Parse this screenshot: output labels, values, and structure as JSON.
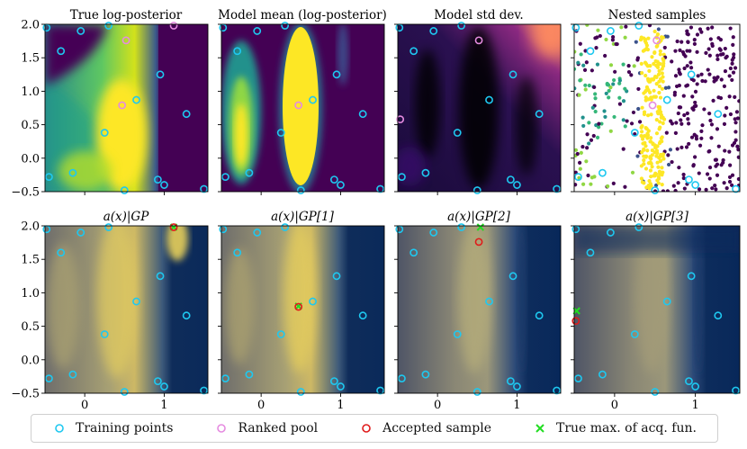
{
  "chart_data": [
    {
      "type": "heatmap",
      "title": "True log-posterior",
      "colormap": "viridis",
      "xlim": [
        -0.5,
        1.55
      ],
      "ylim": [
        -0.5,
        2.0
      ]
    },
    {
      "type": "heatmap",
      "title": "Model mean (log-posterior)",
      "colormap": "viridis",
      "xlim": [
        -0.5,
        1.55
      ],
      "ylim": [
        -0.5,
        2.0
      ]
    },
    {
      "type": "heatmap",
      "title": "Model std dev.",
      "colormap": "magma",
      "xlim": [
        -0.5,
        1.55
      ],
      "ylim": [
        -0.5,
        2.0
      ]
    },
    {
      "type": "scatter",
      "title": "Nested samples",
      "colormap": "viridis",
      "xlim": [
        -0.5,
        1.55
      ],
      "ylim": [
        -0.5,
        2.0
      ]
    },
    {
      "type": "heatmap",
      "title": "a(x)|GP",
      "colormap": "cividis",
      "xlim": [
        -0.5,
        1.55
      ],
      "ylim": [
        -0.5,
        2.0
      ]
    },
    {
      "type": "heatmap",
      "title": "a(x)|GP[1]",
      "colormap": "cividis",
      "xlim": [
        -0.5,
        1.55
      ],
      "ylim": [
        -0.5,
        2.0
      ]
    },
    {
      "type": "heatmap",
      "title": "a(x)|GP[2]",
      "colormap": "cividis",
      "xlim": [
        -0.5,
        1.55
      ],
      "ylim": [
        -0.5,
        2.0
      ]
    },
    {
      "type": "heatmap",
      "title": "a(x)|GP[3]",
      "colormap": "cividis",
      "xlim": [
        -0.5,
        1.55
      ],
      "ylim": [
        -0.5,
        2.0
      ]
    }
  ],
  "axes": {
    "xticks": [
      {
        "v": 0,
        "label": "0"
      },
      {
        "v": 1,
        "label": "1"
      }
    ],
    "yticks": [
      {
        "v": -0.5,
        "label": "−0.5"
      },
      {
        "v": 0.0,
        "label": "0.0"
      },
      {
        "v": 0.5,
        "label": "0.5"
      },
      {
        "v": 1.0,
        "label": "1.0"
      },
      {
        "v": 1.5,
        "label": "1.5"
      },
      {
        "v": 2.0,
        "label": "2.0"
      }
    ]
  },
  "training_points": [
    [
      -0.48,
      1.95
    ],
    [
      -0.05,
      1.9
    ],
    [
      0.3,
      1.98
    ],
    [
      -0.3,
      1.6
    ],
    [
      -0.45,
      -0.28
    ],
    [
      -0.15,
      -0.22
    ],
    [
      0.25,
      0.38
    ],
    [
      0.5,
      -0.48
    ],
    [
      0.65,
      0.87
    ],
    [
      0.95,
      1.25
    ],
    [
      0.92,
      -0.32
    ],
    [
      1.0,
      -0.4
    ],
    [
      1.28,
      0.66
    ],
    [
      1.5,
      -0.46
    ]
  ],
  "pool_points": {
    "0": [
      [
        0.52,
        1.76
      ],
      [
        0.47,
        0.79
      ],
      [
        1.12,
        1.98
      ]
    ],
    "1": [
      [
        0.47,
        0.79
      ]
    ],
    "2": [
      [
        0.52,
        1.76
      ],
      [
        -0.47,
        0.58
      ]
    ],
    "3": [
      [
        0.47,
        0.79
      ],
      [
        0.52,
        1.76
      ]
    ]
  },
  "accepted_samples": {
    "4": [
      [
        1.12,
        1.98
      ]
    ],
    "5": [
      [
        0.47,
        0.79
      ]
    ],
    "6": [
      [
        0.52,
        1.76
      ]
    ],
    "7": [
      [
        -0.48,
        0.58
      ]
    ]
  },
  "true_max": {
    "4": [
      [
        1.12,
        1.98
      ]
    ],
    "5": [
      [
        0.47,
        0.8
      ]
    ],
    "6": [
      [
        0.54,
        1.98
      ]
    ],
    "7": [
      [
        -0.47,
        0.73
      ]
    ]
  },
  "legend": [
    {
      "label": "Training points",
      "color": "#1ec8f0",
      "marker": "circle"
    },
    {
      "label": "Ranked pool",
      "color": "#e58be0",
      "marker": "circle"
    },
    {
      "label": "Accepted sample",
      "color": "#e01b1b",
      "marker": "circle"
    },
    {
      "label": "True max. of acq. fun.",
      "color": "#22dd22",
      "marker": "cross"
    }
  ],
  "colors": {
    "train": "#1ec8f0",
    "pool": "#e58be0",
    "accepted": "#e01b1b",
    "truemax": "#22dd22"
  }
}
